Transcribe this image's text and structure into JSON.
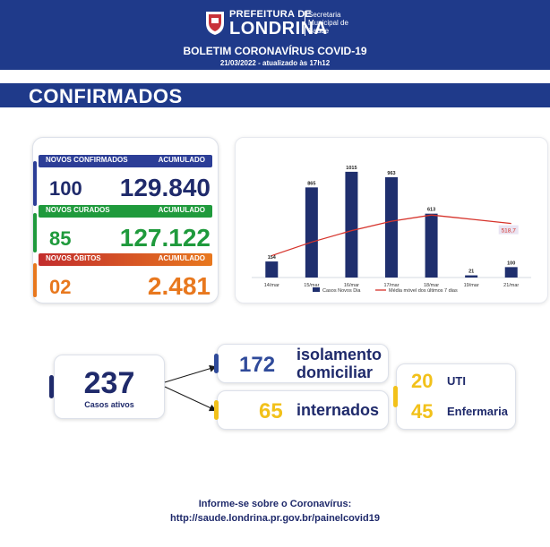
{
  "header": {
    "prefeitura": "PREFEITURA DE",
    "city": "LONDRINA",
    "secretaria": "Secretaria Municipal de Saúde",
    "title": "BOLETIM CORONAVÍRUS COVID-19",
    "date": "21/03/2022 - atualizado às 17h12"
  },
  "section": {
    "title": "CONFIRMADOS"
  },
  "stats": {
    "confirmed": {
      "label": "NOVOS CONFIRMADOS",
      "acc_label": "ACUMULADO",
      "new": "100",
      "total": "129.840",
      "color": "#2c3e97"
    },
    "recovered": {
      "label": "NOVOS CURADOS",
      "acc_label": "ACUMULADO",
      "new": "85",
      "total": "127.122",
      "color": "#1f9a3c"
    },
    "deaths": {
      "label": "NOVOS ÓBITOS",
      "acc_label": "ACUMULADO",
      "new": "02",
      "total": "2.481",
      "color": "#e8781e"
    }
  },
  "chart_data": {
    "type": "bar",
    "categories": [
      "14/mar",
      "15/mar",
      "16/mar",
      "17/mar",
      "18/mar",
      "19/mar",
      "21/mar"
    ],
    "series": [
      {
        "name": "Casos Novos Dia",
        "type": "bar",
        "values": [
          154,
          865,
          1015,
          963,
          613,
          21,
          100
        ],
        "color": "#1f2f6e"
      },
      {
        "name": "Média móvel dos últimos 7 dias",
        "type": "line",
        "values": [
          210,
          340,
          450,
          540,
          600,
          560,
          518.7
        ],
        "color": "#d6332b"
      }
    ],
    "bar_labels": [
      "154",
      "865",
      "1015",
      "963",
      "613",
      "21",
      "100"
    ],
    "line_end_label": "518,7",
    "ylim": [
      0,
      1100
    ]
  },
  "active": {
    "count": "237",
    "label": "Casos ativos"
  },
  "isolation": {
    "count": "172",
    "label_line1": "isolamento",
    "label_line2": "domiciliar"
  },
  "hospitalized": {
    "count": "65",
    "label": "internados"
  },
  "beds": {
    "uti_count": "20",
    "uti_label": "UTI",
    "ward_count": "45",
    "ward_label": "Enfermaria"
  },
  "footer": {
    "line1": "Informe-se sobre o Coronavírus:",
    "line2": "http://saude.londrina.pr.gov.br/painelcovid19"
  },
  "colors": {
    "navy": "#1f3a8a",
    "dark_text": "#1f2a6b",
    "yellow": "#f2c11a",
    "blue_count": "#2f4a9a"
  }
}
